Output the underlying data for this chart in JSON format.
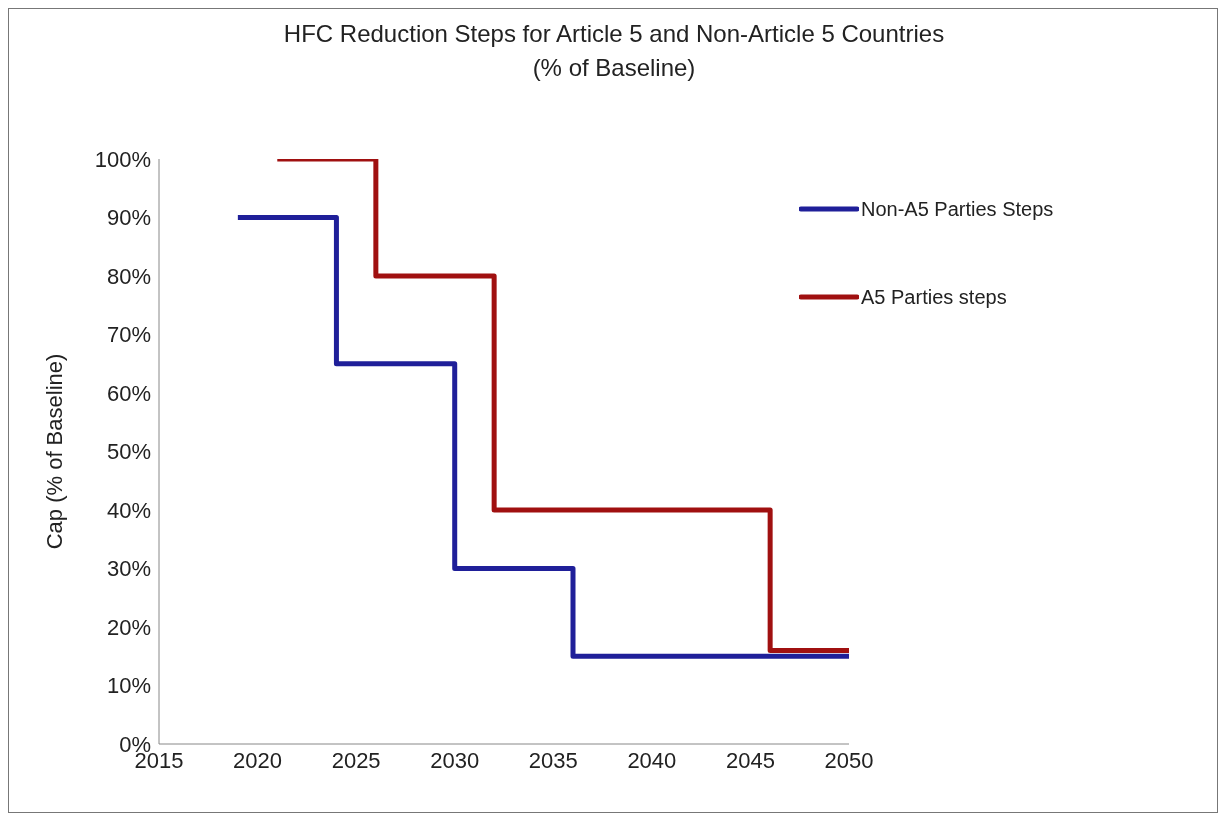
{
  "chart_data": {
    "type": "step",
    "title": "HFC Reduction Steps for Article 5 and Non-Article 5 Countries\n(% of Baseline)",
    "ylabel": "Cap (% of Baseline)",
    "series": [
      {
        "name": "Non-A5 Parties Steps",
        "color": "#1f1f99",
        "x": [
          2019,
          2024,
          2030,
          2036,
          2050
        ],
        "values": [
          90,
          65,
          30,
          15,
          15
        ]
      },
      {
        "name": "A5 Parties steps",
        "color": "#a01010",
        "x": [
          2021,
          2026,
          2032,
          2046,
          2050
        ],
        "values": [
          100,
          80,
          40,
          16,
          16
        ]
      }
    ],
    "xlim": [
      2015,
      2050
    ],
    "xticks": [
      2015,
      2020,
      2025,
      2030,
      2035,
      2040,
      2045,
      2050
    ],
    "ylim": [
      0,
      100
    ],
    "yticks": [
      {
        "value": 0,
        "label": "0%"
      },
      {
        "value": 10,
        "label": "10%"
      },
      {
        "value": 20,
        "label": "20%"
      },
      {
        "value": 30,
        "label": "30%"
      },
      {
        "value": 40,
        "label": "40%"
      },
      {
        "value": 50,
        "label": "50%"
      },
      {
        "value": 60,
        "label": "60%"
      },
      {
        "value": 70,
        "label": "70%"
      },
      {
        "value": 80,
        "label": "80%"
      },
      {
        "value": 90,
        "label": "90%"
      },
      {
        "value": 100,
        "label": "100%"
      }
    ],
    "grid": false,
    "legend": "top right",
    "line_style": "solid",
    "marker": "none"
  }
}
